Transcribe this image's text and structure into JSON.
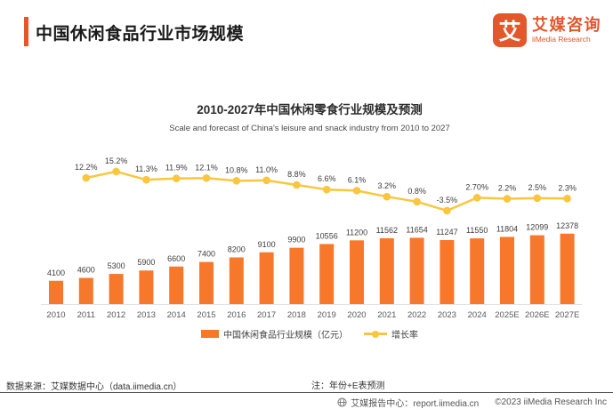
{
  "header": {
    "title": "中国休闲食品行业市场规模",
    "logo": {
      "symbol": "艾",
      "name_cn": "艾媒咨询",
      "name_en": "iiMedia Research"
    }
  },
  "theme": {
    "brand_orange": "#E2572B",
    "bar_orange": "#F8782B",
    "line_yellow": "#FBC63F"
  },
  "chart_data": {
    "type": "bar+line",
    "title": "2010-2027年中国休闲零食行业规模及预测",
    "subtitle": "Scale and forecast of China's leisure and snack industry from 2010 to 2027",
    "categories": [
      "2010",
      "2011",
      "2012",
      "2013",
      "2014",
      "2015",
      "2016",
      "2017",
      "2018",
      "2019",
      "2020",
      "2021",
      "2022",
      "2023",
      "2024",
      "2025E",
      "2026E",
      "2027E"
    ],
    "series": [
      {
        "name": "中国休闲食品行业规模（亿元）",
        "type": "bar",
        "color": "#F8782B",
        "values": [
          4100,
          4600,
          5300,
          5900,
          6600,
          7400,
          8200,
          9100,
          9900,
          10556,
          11200,
          11562,
          11654,
          11247,
          11550,
          11804,
          12099,
          12378
        ]
      },
      {
        "name": "增长率",
        "type": "line",
        "color": "#FBC63F",
        "start_category": "2011",
        "values": [
          12.2,
          15.2,
          11.3,
          11.9,
          12.1,
          10.8,
          11.0,
          8.8,
          6.6,
          6.1,
          3.2,
          0.8,
          -3.5,
          2.7,
          2.2,
          2.5,
          2.3
        ],
        "labels": [
          "12.2%",
          "15.2%",
          "11.3%",
          "11.9%",
          "12.1%",
          "10.8%",
          "11.0%",
          "8.8%",
          "6.6%",
          "6.1%",
          "3.2%",
          "0.8%",
          "-3.5%",
          "2.70%",
          "2.2%",
          "2.5%",
          "2.3%"
        ]
      }
    ],
    "ylim_bar": [
      0,
      13000
    ],
    "grid": false,
    "legend_position": "bottom"
  },
  "footer": {
    "source": "数据来源：艾媒数据中心（data.iimedia.cn）",
    "note": "注：年份+E表预测",
    "report_center": "艾媒报告中心：report.iimedia.cn",
    "copyright": "©2023  iiMedia Research Inc"
  }
}
